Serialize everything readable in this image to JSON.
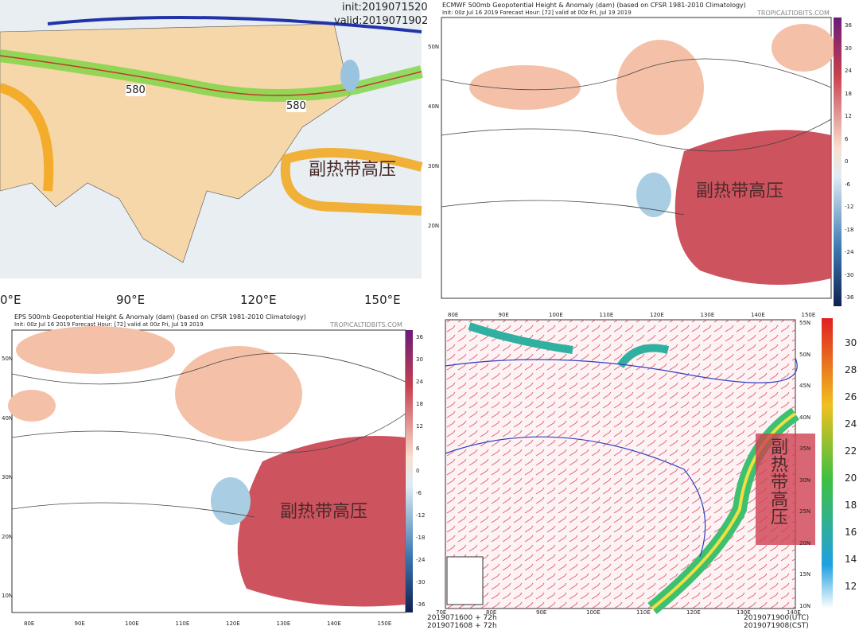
{
  "panels": [
    {
      "init": "init:2019071520",
      "valid": "valid:2019071902",
      "contour_labels": [
        "580",
        "580"
      ],
      "annotation": "副热带高压",
      "lon_labels": [
        "0°E",
        "90°E",
        "120°E",
        "150°E"
      ]
    },
    {
      "title": "ECMWF 500mb Geopotential Height & Anomaly (dam) (based on CFSR 1981-2010 Climatology)",
      "subtitle": "Init: 00z Jul 16 2019   Forecast Hour: [72]   valid at 00z Fri, Jul 19 2019",
      "credit": "TROPICALTIDBITS.COM",
      "annotation": "副热带高压",
      "lat_labels": [
        "50N",
        "40N",
        "30N",
        "20N"
      ],
      "lon_labels": [
        "80E",
        "90E",
        "100E",
        "110E",
        "120E",
        "130E",
        "140E",
        "150E"
      ],
      "colorbar": [
        "36",
        "30",
        "24",
        "18",
        "12",
        "6",
        "0",
        "-6",
        "-12",
        "-18",
        "-24",
        "-30",
        "-36"
      ]
    },
    {
      "title": "EPS 500mb Geopotential Height & Anomaly (dam) (based on CFSR 1981-2010 Climatology)",
      "subtitle": "Init: 00z Jul 16 2019   Forecast Hour: [72]   valid at 00z Fri, Jul 19 2019",
      "credit": "TROPICALTIDBITS.COM",
      "annotation": "副热带高压",
      "lat_labels": [
        "50N",
        "40N",
        "30N",
        "20N",
        "10N"
      ],
      "lon_labels": [
        "80E",
        "90E",
        "100E",
        "110E",
        "120E",
        "130E",
        "140E",
        "150E"
      ],
      "colorbar": [
        "36",
        "30",
        "24",
        "18",
        "12",
        "6",
        "0",
        "-6",
        "-12",
        "-18",
        "-24",
        "-30",
        "-36"
      ]
    },
    {
      "annotation": "副热带高压",
      "lat_labels": [
        "55N",
        "50N",
        "45N",
        "40N",
        "35N",
        "30N",
        "25N",
        "20N",
        "15N",
        "10N"
      ],
      "lon_labels": [
        "70E",
        "80E",
        "90E",
        "100E",
        "110E",
        "120E",
        "130E",
        "140E"
      ],
      "colorbar": [
        "30",
        "28",
        "26",
        "24",
        "22",
        "20",
        "18",
        "16",
        "14",
        "12"
      ],
      "footer_left": [
        "2019071600 + 72h",
        "2019071608 + 72h"
      ],
      "footer_right": [
        "2019071900(UTC)",
        "2019071908(CST)"
      ]
    }
  ]
}
